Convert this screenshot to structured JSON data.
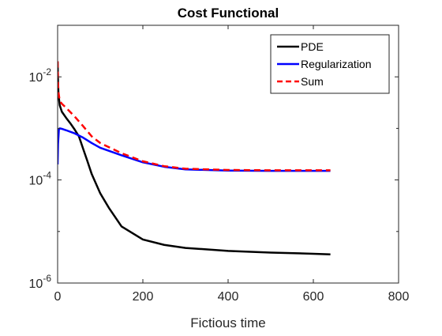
{
  "chart_data": {
    "type": "line",
    "title": "Cost Functional",
    "xlabel": "Fictious time",
    "ylabel": "",
    "xscale": "linear",
    "yscale": "log",
    "xlim": [
      0,
      800
    ],
    "ylim": [
      1e-06,
      0.1
    ],
    "xticks": [
      0,
      200,
      400,
      600,
      800
    ],
    "xtick_labels": [
      "0",
      "200",
      "400",
      "600",
      "800"
    ],
    "yticks": [
      1e-06,
      0.0001,
      0.01
    ],
    "ytick_labels": [
      {
        "base": "10",
        "exp": "-6"
      },
      {
        "base": "10",
        "exp": "-4"
      },
      {
        "base": "10",
        "exp": "-2"
      }
    ],
    "grid": false,
    "legend": "top-right",
    "series": [
      {
        "name": "PDE",
        "color": "#000000",
        "dash": "solid",
        "x": [
          0,
          1,
          2,
          5,
          10,
          20,
          30,
          40,
          50,
          60,
          70,
          80,
          100,
          120,
          150,
          200,
          250,
          300,
          400,
          500,
          600,
          640
        ],
        "y": [
          0.02,
          0.008,
          0.0045,
          0.0028,
          0.0021,
          0.0016,
          0.00125,
          0.00095,
          0.0007,
          0.0004,
          0.00023,
          0.00013,
          5.5e-05,
          2.9e-05,
          1.25e-05,
          7e-06,
          5.5e-06,
          4.8e-06,
          4.2e-06,
          3.9e-06,
          3.7e-06,
          3.6e-06
        ]
      },
      {
        "name": "Regularization",
        "color": "#0000ff",
        "dash": "solid",
        "x": [
          0,
          1,
          3,
          5,
          10,
          20,
          40,
          60,
          80,
          100,
          150,
          200,
          250,
          300,
          400,
          500,
          640
        ],
        "y": [
          0.0002,
          0.0005,
          0.00095,
          0.001,
          0.00098,
          0.00092,
          0.0008,
          0.00066,
          0.00052,
          0.00042,
          0.0003,
          0.00022,
          0.00018,
          0.00016,
          0.000152,
          0.00015,
          0.00015
        ]
      },
      {
        "name": "Sum",
        "color": "#ff0000",
        "dash": "dashed",
        "x": [
          0,
          1,
          2,
          5,
          10,
          20,
          40,
          60,
          80,
          100,
          150,
          200,
          250,
          300,
          400,
          500,
          640
        ],
        "y": [
          0.02,
          0.008,
          0.005,
          0.0034,
          0.003,
          0.0025,
          0.0017,
          0.0011,
          0.0007,
          0.00052,
          0.00033,
          0.00023,
          0.000185,
          0.000165,
          0.000156,
          0.000154,
          0.000154
        ]
      }
    ]
  }
}
